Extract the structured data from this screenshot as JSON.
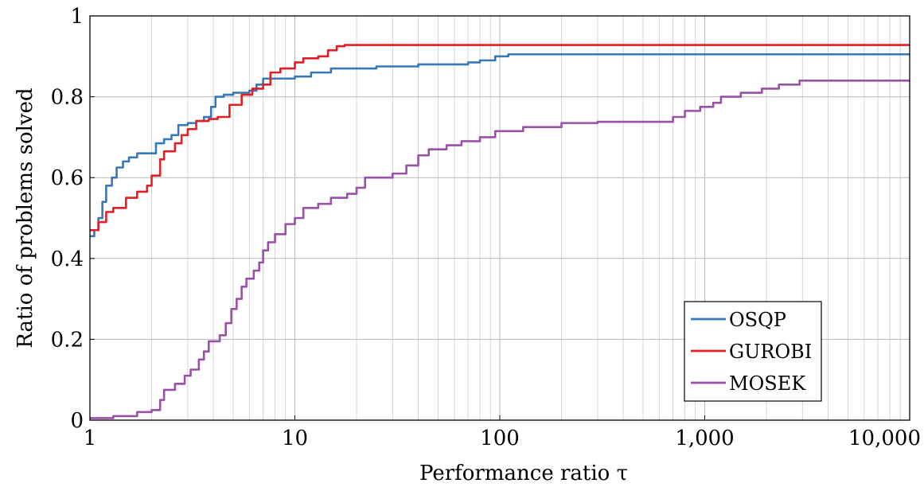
{
  "chart_data": {
    "type": "line",
    "title": "",
    "xlabel": "Performance ratio τ",
    "ylabel": "Ratio of problems solved",
    "xscale": "log",
    "xlim": [
      1,
      10000
    ],
    "ylim": [
      0,
      1
    ],
    "grid": true,
    "legend_position": "bottom-right",
    "x_ticks": [
      1,
      10,
      100,
      1000,
      10000
    ],
    "x_tick_labels": [
      "1",
      "10",
      "100",
      "1,000",
      "10,000"
    ],
    "y_ticks": [
      0,
      0.2,
      0.4,
      0.6,
      0.8,
      1
    ],
    "y_tick_labels": [
      "0",
      "0.2",
      "0.4",
      "0.6",
      "0.8",
      "1"
    ],
    "series": [
      {
        "name": "OSQP",
        "color": "#3778b8",
        "points": [
          [
            1,
            0.455
          ],
          [
            1.05,
            0.47
          ],
          [
            1.1,
            0.5
          ],
          [
            1.15,
            0.54
          ],
          [
            1.2,
            0.58
          ],
          [
            1.28,
            0.6
          ],
          [
            1.35,
            0.625
          ],
          [
            1.45,
            0.64
          ],
          [
            1.55,
            0.65
          ],
          [
            1.7,
            0.66
          ],
          [
            2.0,
            0.66
          ],
          [
            2.1,
            0.685
          ],
          [
            2.3,
            0.695
          ],
          [
            2.5,
            0.705
          ],
          [
            2.7,
            0.73
          ],
          [
            3.0,
            0.735
          ],
          [
            3.3,
            0.74
          ],
          [
            3.6,
            0.75
          ],
          [
            3.9,
            0.775
          ],
          [
            4.1,
            0.8
          ],
          [
            4.5,
            0.805
          ],
          [
            5.0,
            0.81
          ],
          [
            6.0,
            0.815
          ],
          [
            6.5,
            0.83
          ],
          [
            7.0,
            0.845
          ],
          [
            8.0,
            0.845
          ],
          [
            10,
            0.85
          ],
          [
            12,
            0.86
          ],
          [
            15,
            0.87
          ],
          [
            25,
            0.875
          ],
          [
            40,
            0.88
          ],
          [
            70,
            0.885
          ],
          [
            80,
            0.89
          ],
          [
            95,
            0.9
          ],
          [
            110,
            0.905
          ],
          [
            10000,
            0.905
          ]
        ]
      },
      {
        "name": "GUROBI",
        "color": "#e01f26",
        "points": [
          [
            1,
            0.47
          ],
          [
            1.1,
            0.49
          ],
          [
            1.2,
            0.515
          ],
          [
            1.3,
            0.525
          ],
          [
            1.5,
            0.55
          ],
          [
            1.7,
            0.565
          ],
          [
            1.9,
            0.58
          ],
          [
            2.0,
            0.605
          ],
          [
            2.2,
            0.645
          ],
          [
            2.3,
            0.665
          ],
          [
            2.6,
            0.685
          ],
          [
            2.8,
            0.705
          ],
          [
            3.0,
            0.72
          ],
          [
            3.3,
            0.74
          ],
          [
            3.8,
            0.745
          ],
          [
            4.2,
            0.75
          ],
          [
            4.8,
            0.78
          ],
          [
            5.5,
            0.805
          ],
          [
            6.2,
            0.82
          ],
          [
            7.0,
            0.83
          ],
          [
            7.6,
            0.86
          ],
          [
            8.5,
            0.87
          ],
          [
            10,
            0.885
          ],
          [
            11,
            0.895
          ],
          [
            13,
            0.9
          ],
          [
            14.5,
            0.915
          ],
          [
            16,
            0.925
          ],
          [
            17.5,
            0.928
          ],
          [
            10000,
            0.928
          ]
        ]
      },
      {
        "name": "MOSEK",
        "color": "#9a4fa8",
        "points": [
          [
            1,
            0.005
          ],
          [
            1.3,
            0.01
          ],
          [
            1.7,
            0.02
          ],
          [
            2.0,
            0.025
          ],
          [
            2.2,
            0.05
          ],
          [
            2.3,
            0.075
          ],
          [
            2.6,
            0.09
          ],
          [
            2.9,
            0.11
          ],
          [
            3.1,
            0.125
          ],
          [
            3.4,
            0.15
          ],
          [
            3.6,
            0.17
          ],
          [
            3.8,
            0.195
          ],
          [
            4.3,
            0.21
          ],
          [
            4.6,
            0.24
          ],
          [
            4.9,
            0.275
          ],
          [
            5.2,
            0.3
          ],
          [
            5.5,
            0.33
          ],
          [
            5.8,
            0.35
          ],
          [
            6.3,
            0.37
          ],
          [
            6.7,
            0.39
          ],
          [
            7.0,
            0.42
          ],
          [
            7.4,
            0.44
          ],
          [
            8.0,
            0.46
          ],
          [
            9.0,
            0.485
          ],
          [
            10,
            0.5
          ],
          [
            11,
            0.525
          ],
          [
            13,
            0.535
          ],
          [
            15,
            0.55
          ],
          [
            18,
            0.56
          ],
          [
            20,
            0.575
          ],
          [
            22,
            0.6
          ],
          [
            30,
            0.61
          ],
          [
            35,
            0.63
          ],
          [
            40,
            0.655
          ],
          [
            45,
            0.67
          ],
          [
            55,
            0.68
          ],
          [
            65,
            0.69
          ],
          [
            80,
            0.7
          ],
          [
            95,
            0.715
          ],
          [
            130,
            0.725
          ],
          [
            200,
            0.735
          ],
          [
            300,
            0.738
          ],
          [
            500,
            0.738
          ],
          [
            700,
            0.75
          ],
          [
            800,
            0.765
          ],
          [
            950,
            0.775
          ],
          [
            1100,
            0.785
          ],
          [
            1200,
            0.8
          ],
          [
            1500,
            0.81
          ],
          [
            1900,
            0.82
          ],
          [
            2300,
            0.83
          ],
          [
            2900,
            0.84
          ],
          [
            10000,
            0.84
          ]
        ]
      }
    ]
  }
}
